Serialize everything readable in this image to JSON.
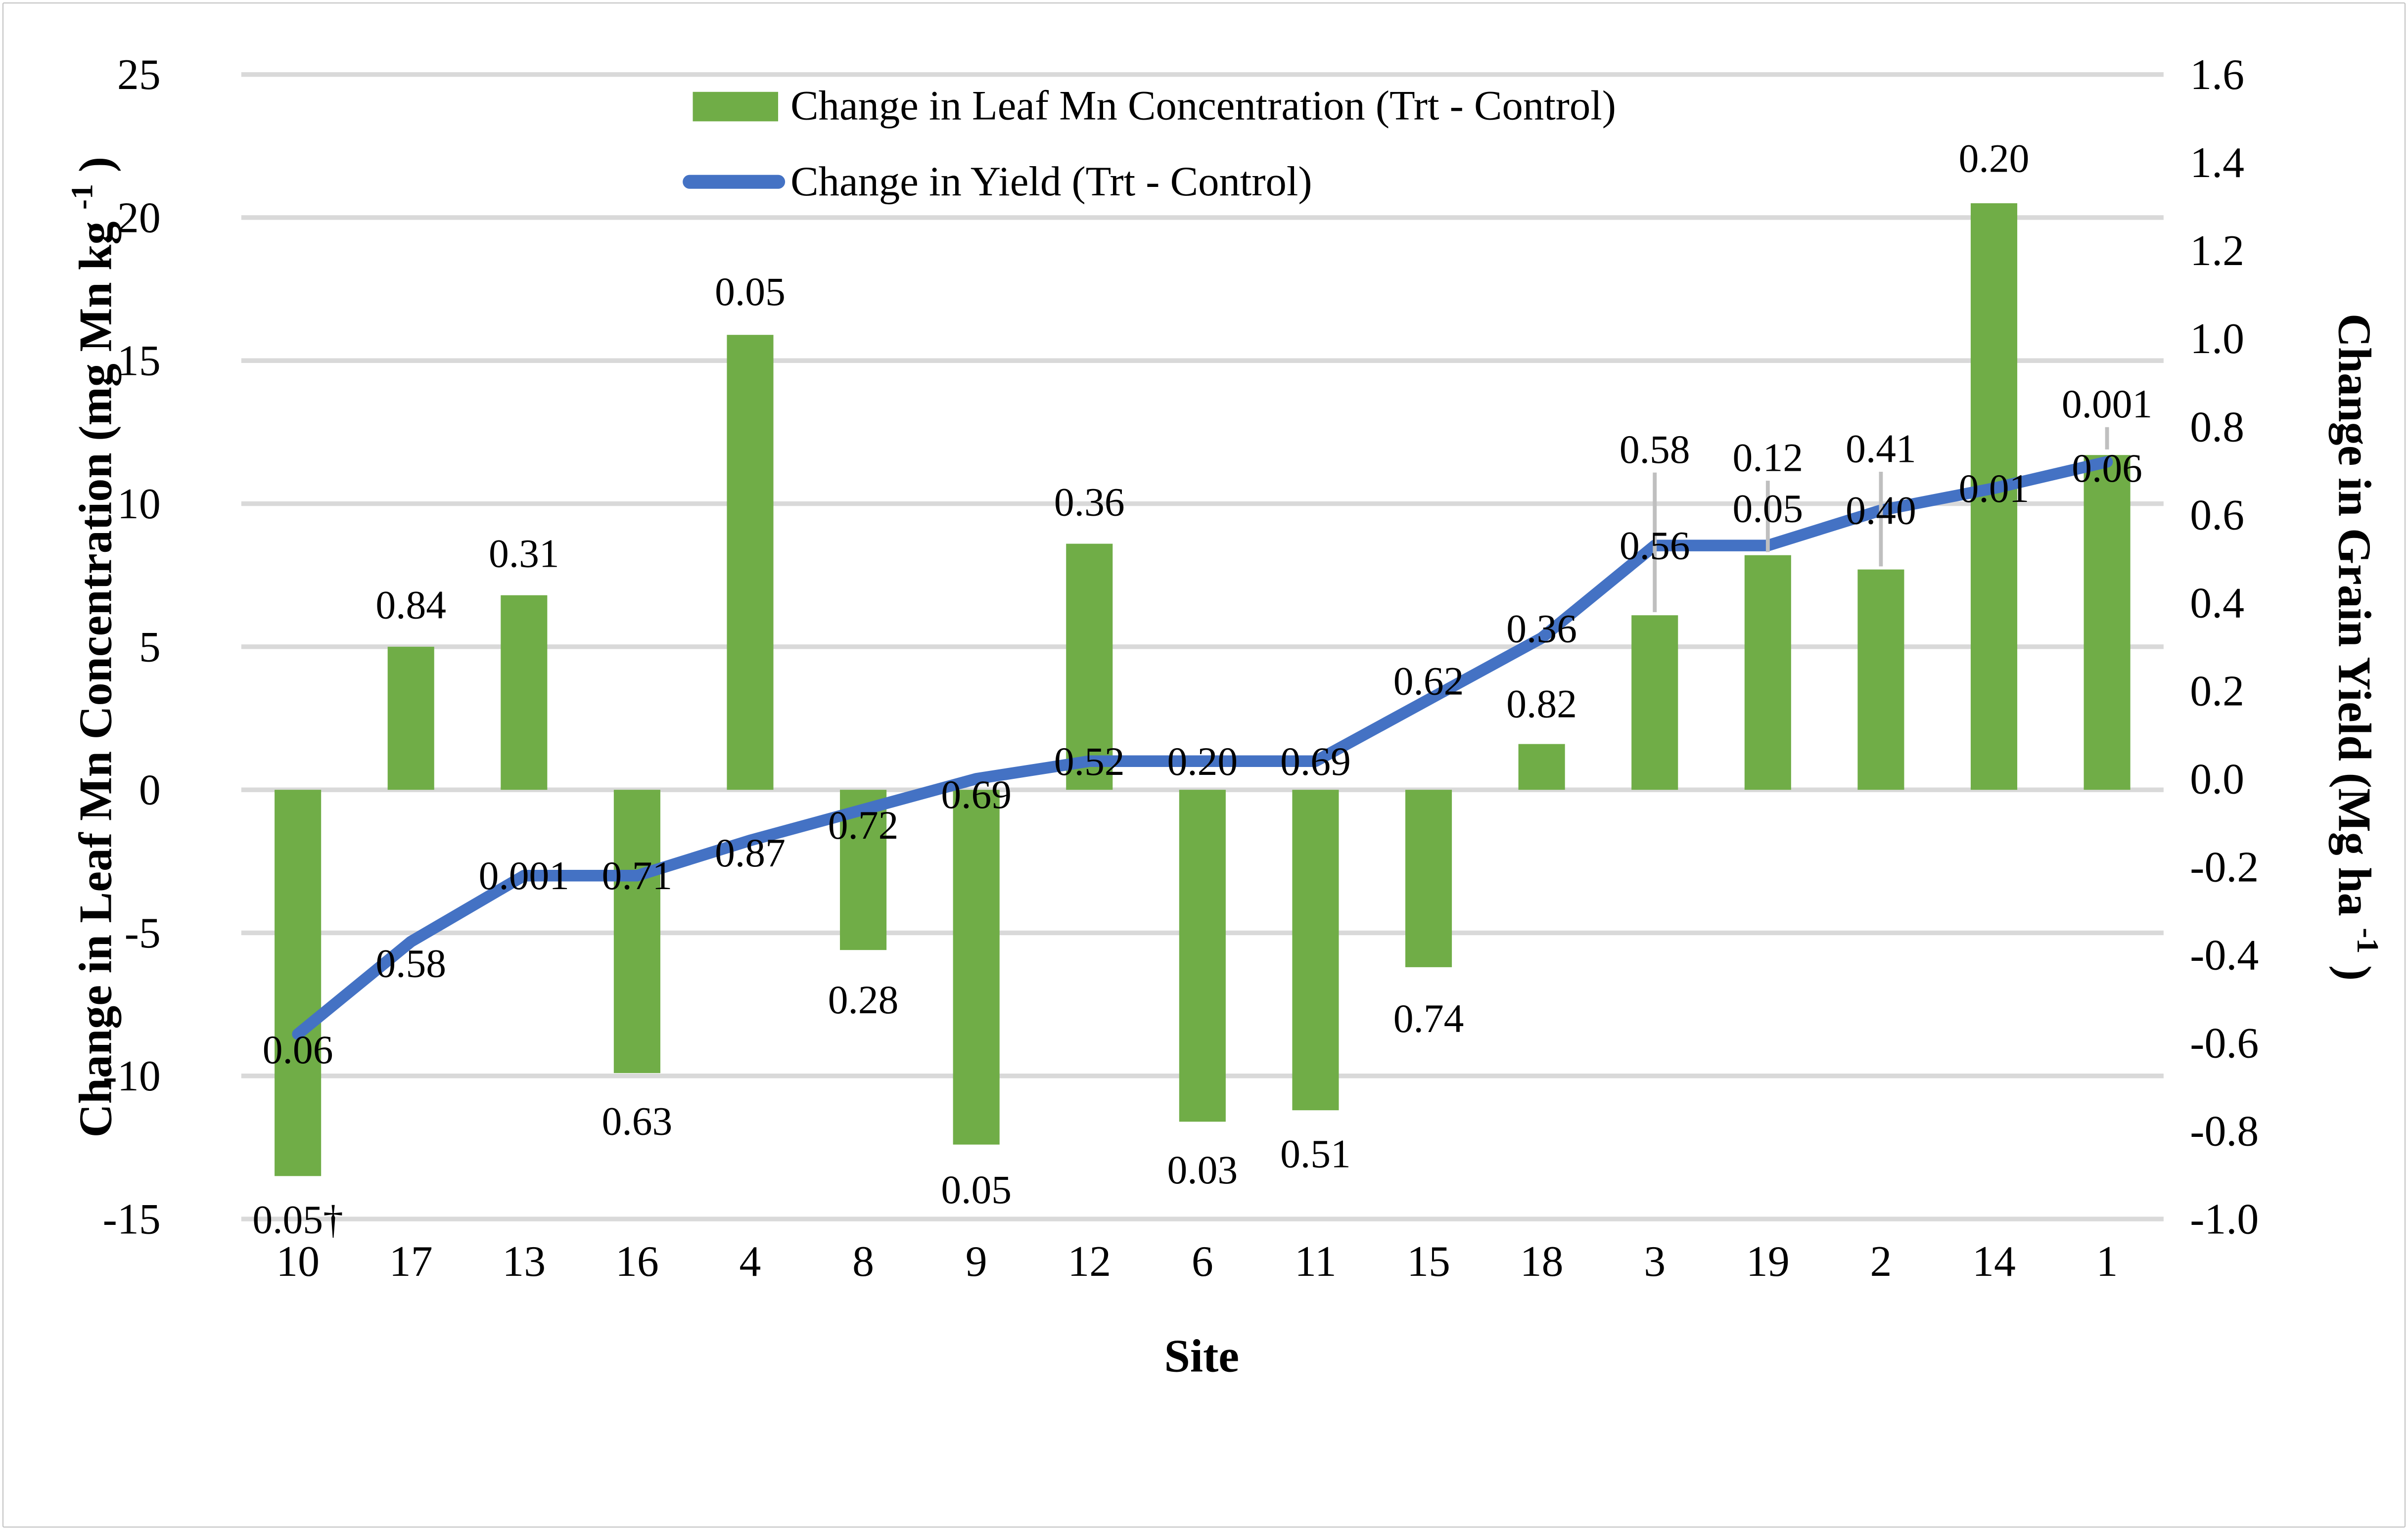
{
  "figure": {
    "background": "#FFFFFF",
    "border_color": "#BFBFBF"
  },
  "chart_data": {
    "type": "combo-bar-line",
    "title": "",
    "xlabel": "Site",
    "categories": [
      "10",
      "17",
      "13",
      "16",
      "4",
      "8",
      "9",
      "12",
      "6",
      "11",
      "15",
      "18",
      "3",
      "19",
      "2",
      "14",
      "1"
    ],
    "series": [
      {
        "name": "Change in Leaf Mn Concentration (Trt - Control)",
        "type": "bar",
        "yaxis": "left",
        "color": "#70AD47",
        "values": [
          -13.5,
          5.0,
          6.8,
          -9.9,
          15.9,
          -5.6,
          -12.4,
          8.6,
          -11.6,
          -11.2,
          -6.2,
          1.6,
          6.1,
          8.2,
          7.7,
          20.5,
          11.7
        ],
        "point_labels": [
          "0.05†",
          "0.84",
          "0.31",
          "0.63",
          "0.05",
          "0.28",
          "0.05",
          "0.36",
          "0.03",
          "0.51",
          "0.74",
          "0.82",
          "0.58",
          "0.12",
          "0.41",
          "0.20",
          "0.001"
        ]
      },
      {
        "name": "Change in Yield (Trt - Control)",
        "type": "line",
        "yaxis": "right",
        "color": "#4472C4",
        "values": [
          -0.58,
          -0.37,
          -0.22,
          -0.22,
          -0.14,
          -0.07,
          0.0,
          0.04,
          0.04,
          0.04,
          0.18,
          0.32,
          0.53,
          0.53,
          0.61,
          0.66,
          0.72
        ],
        "point_labels": [
          "0.06",
          "0.58",
          "0.001",
          "0.71",
          "0.87",
          "0.72",
          "0.69",
          "0.52",
          "0.20",
          "0.69",
          "0.62",
          "0.36",
          "0.56",
          "0.05",
          "0.40",
          "0.01",
          "0.06"
        ]
      }
    ],
    "left_axis": {
      "title": "Change in Leaf Mn Concentration (mg Mn kg",
      "title_sup": "-1",
      "title_close": ")",
      "min": -15,
      "max": 25,
      "ticks": [
        25,
        20,
        15,
        10,
        5,
        0,
        -5,
        -10,
        -15
      ]
    },
    "right_axis": {
      "title": "Change in Grain Yield (Mg ha",
      "title_sup": "-1",
      "title_close": ")",
      "min": -1.0,
      "max": 1.6,
      "ticks": [
        "1.6",
        "1.4",
        "1.2",
        "1.0",
        "0.8",
        "0.6",
        "0.4",
        "0.2",
        "0.0",
        "-0.2",
        "-0.4",
        "-0.6",
        "-0.8",
        "-1.0"
      ]
    },
    "grid": true,
    "legend_position": "top-center",
    "layout_hints": {
      "gridline_color": "#D9D9D9",
      "leader_color": "#BFBFBF",
      "bar_label_dy": [
        28,
        -27,
        -27,
        31,
        -28,
        32,
        29,
        -27,
        31,
        28,
        33,
        -26,
        -107,
        -63,
        -78,
        -29,
        -33
      ],
      "line_label_dy": [
        10,
        14,
        0,
        0,
        8,
        10,
        10,
        0,
        0,
        0,
        -12,
        -6,
        0,
        -24,
        0,
        0,
        4
      ],
      "leader_lines": [
        {
          "category": "3",
          "target": "bar"
        },
        {
          "category": "19",
          "target": "bar"
        },
        {
          "category": "2",
          "target": "bar"
        },
        {
          "category": "1",
          "target": "line"
        }
      ]
    }
  }
}
